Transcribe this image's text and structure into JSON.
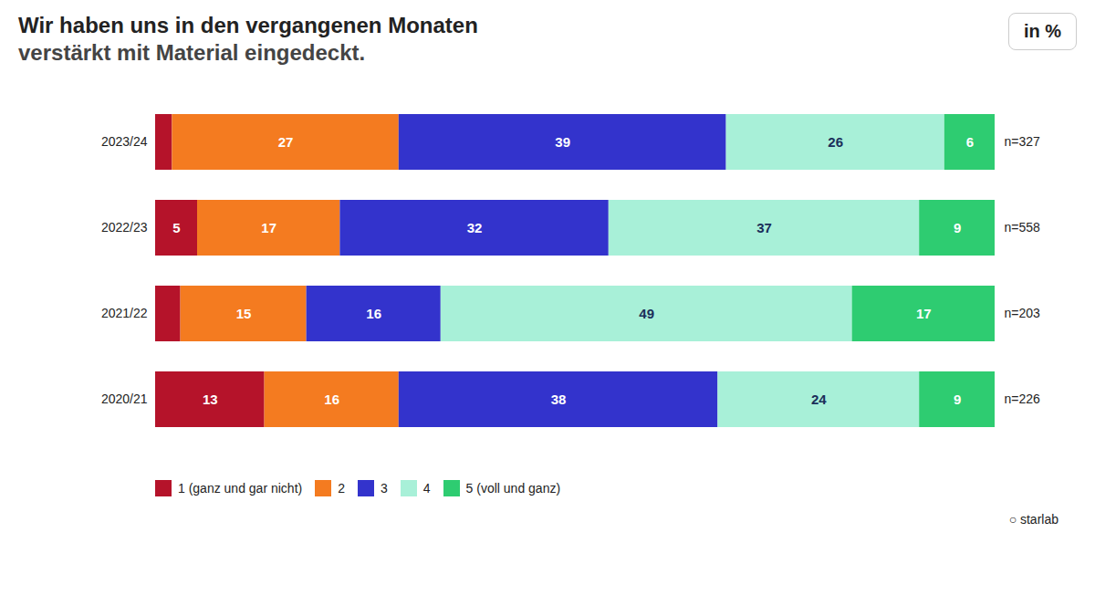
{
  "chart_data": {
    "type": "bar",
    "orientation": "horizontal",
    "stacked": true,
    "title": "Wir haben uns in den vergangenen Monaten",
    "subtitle": "verstärkt mit Material eingedeckt.",
    "categories": [
      "2023/24",
      "2022/23",
      "2021/22",
      "2020/21"
    ],
    "series": [
      {
        "name": "1 (ganz und gar nicht)",
        "color": "#b5132a",
        "values": [
          2,
          5,
          3,
          13
        ],
        "value_labels": [
          null,
          "5",
          null,
          "13"
        ]
      },
      {
        "name": "2",
        "color": "#f47b20",
        "values": [
          27,
          17,
          15,
          16
        ],
        "value_labels": [
          "27",
          "17",
          "15",
          "16"
        ]
      },
      {
        "name": "3",
        "color": "#3333cc",
        "values": [
          39,
          32,
          16,
          38
        ],
        "value_labels": [
          "39",
          "32",
          "16",
          "38"
        ]
      },
      {
        "name": "4",
        "color": "#a8f0d8",
        "values": [
          26,
          37,
          49,
          24
        ],
        "value_labels": [
          "26",
          "37",
          "49",
          "24"
        ]
      },
      {
        "name": "5 (voll und ganz)",
        "color": "#2ecc71",
        "values": [
          6,
          9,
          17,
          9
        ],
        "value_labels": [
          "6",
          "9",
          "17",
          "9"
        ]
      }
    ],
    "xlim": [
      0,
      100
    ],
    "tick_labels": "y",
    "grid": false,
    "legend": "bottom",
    "data_labels": true,
    "annotations": [
      {
        "category": "2023/24",
        "text": "n=327"
      },
      {
        "category": "2022/23",
        "text": "n=558"
      },
      {
        "category": "2021/22",
        "text": "n=203"
      },
      {
        "category": "2020/21",
        "text": "n=226"
      },
      {
        "text": "in %"
      },
      {
        "text": "○ starlab"
      }
    ]
  }
}
